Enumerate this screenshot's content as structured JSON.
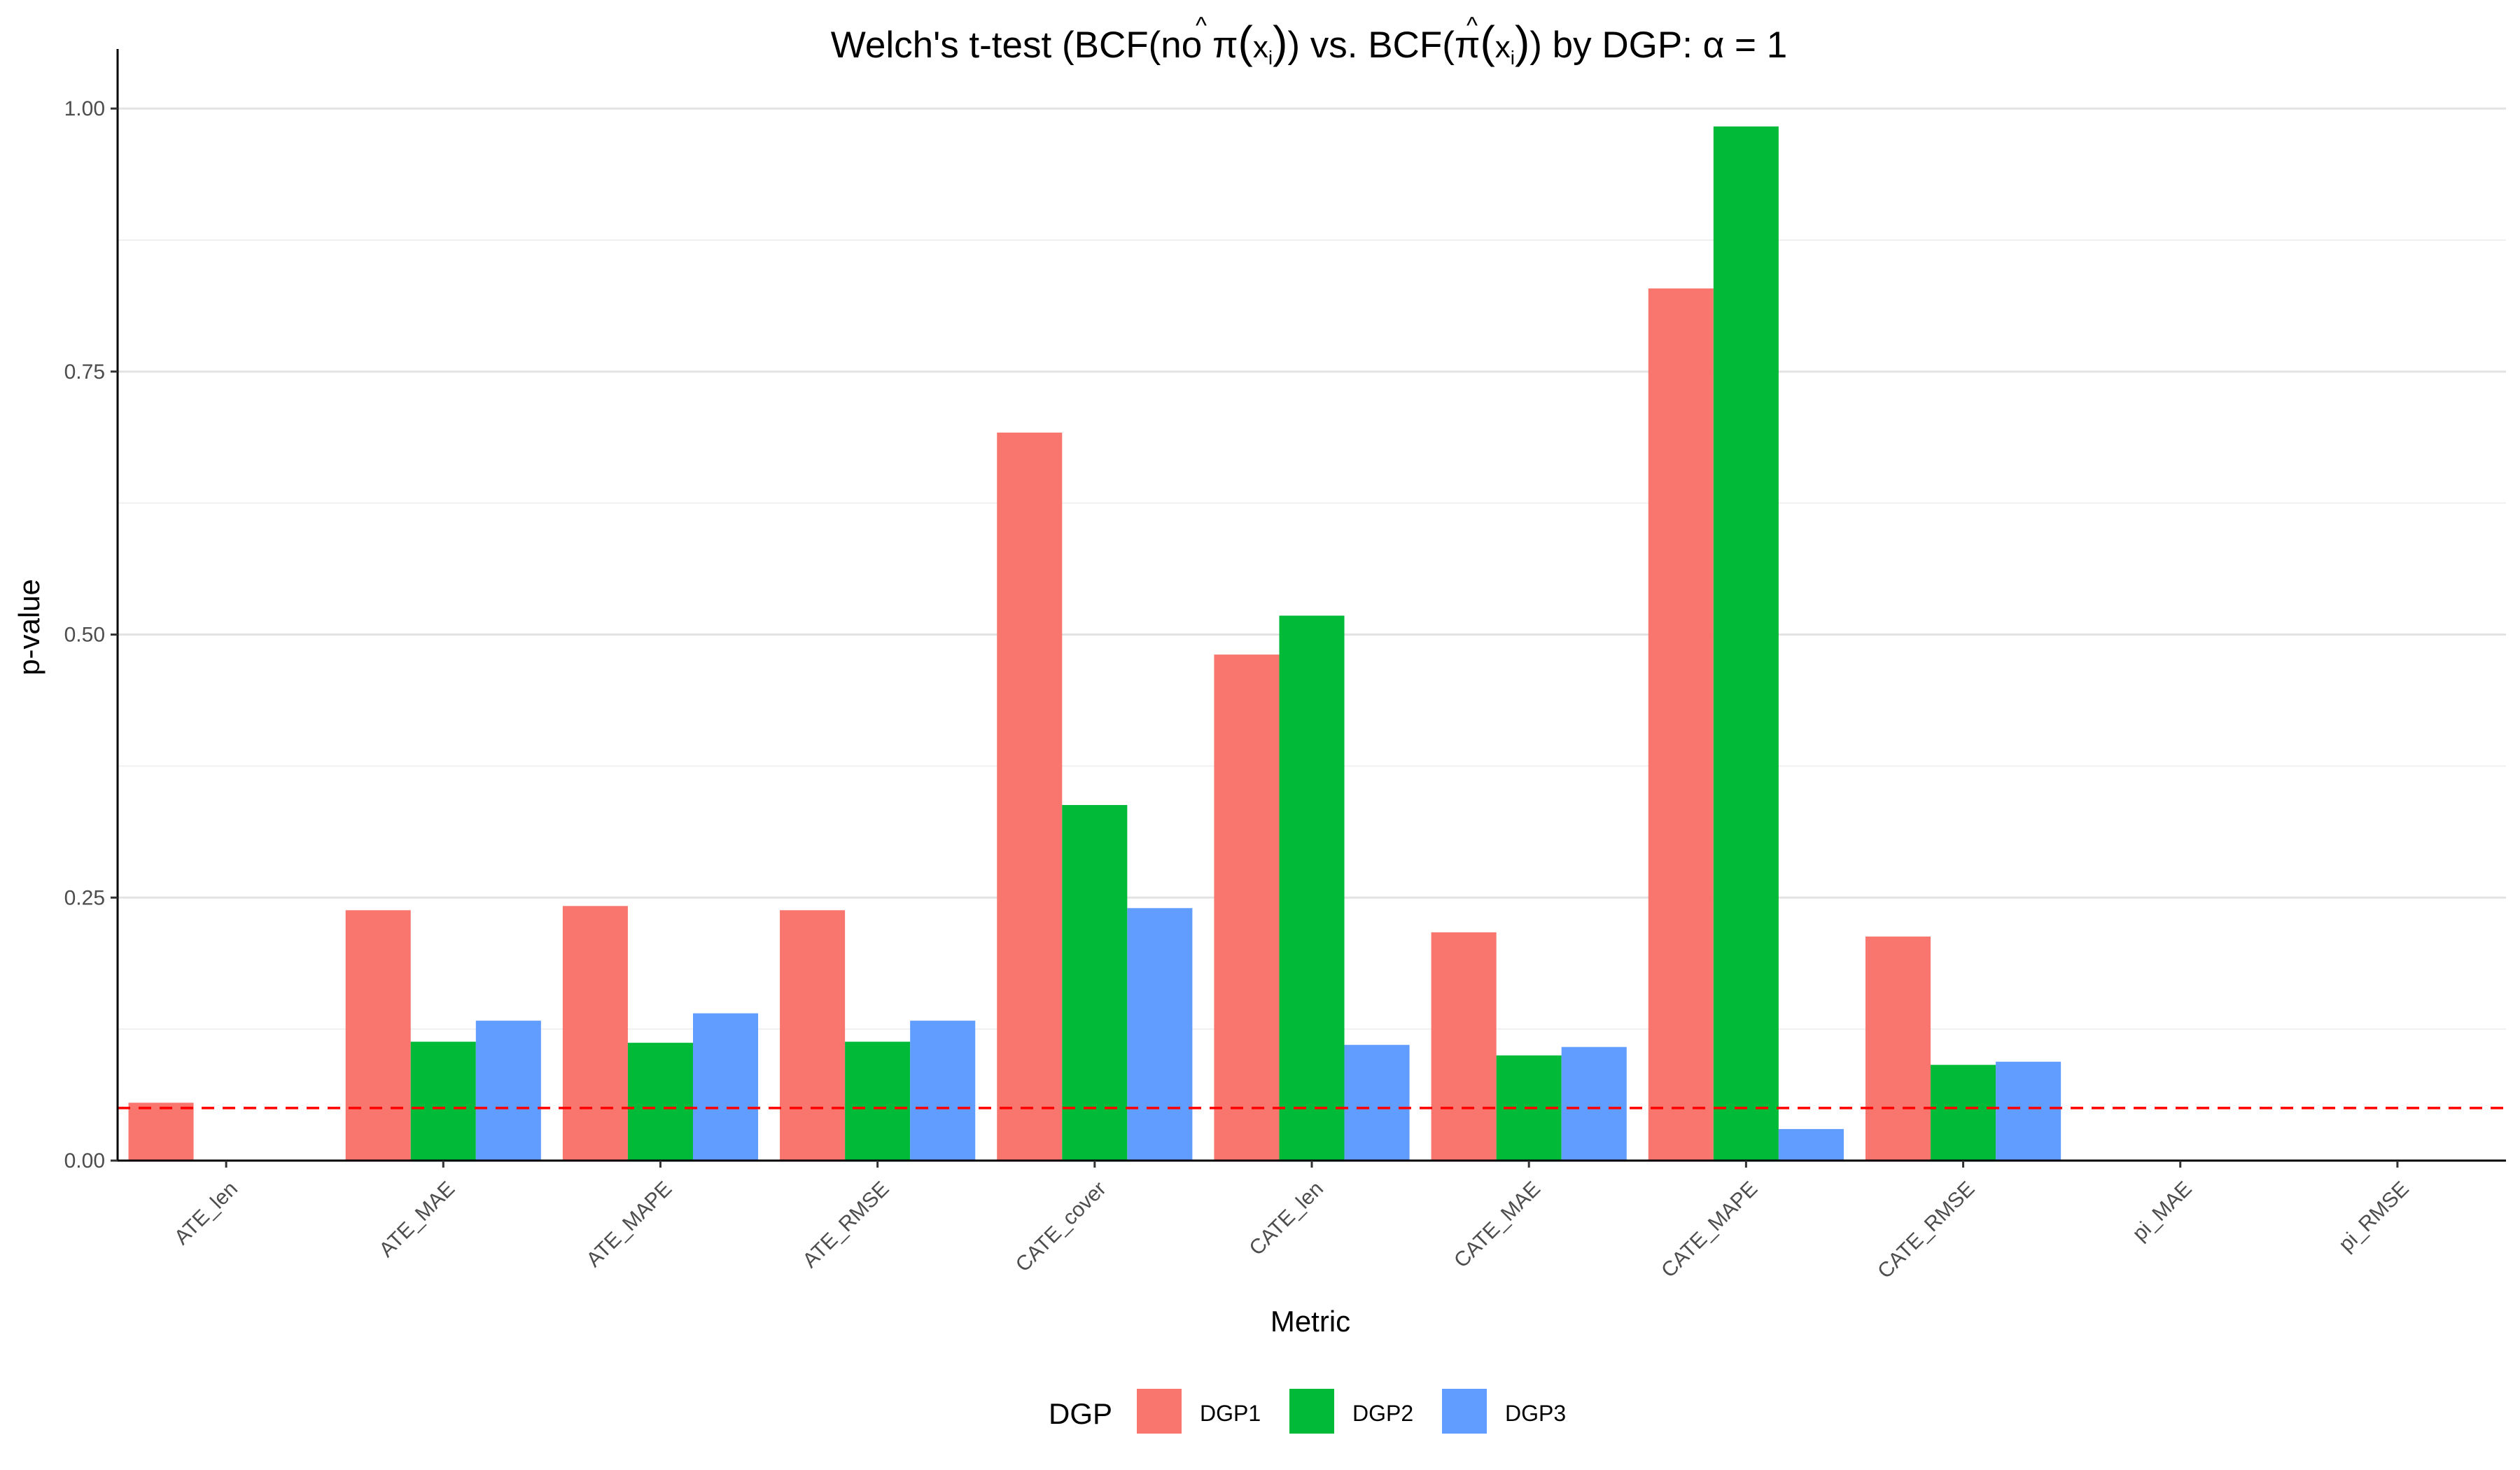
{
  "chart_data": {
    "type": "bar",
    "title": {
      "prefix": "Welch's t-test (BCF(no ",
      "pi": "π",
      "hat": "^",
      "paren_open": "(",
      "x": "x",
      "sub": "i",
      "paren_close": ")",
      "middle": ") vs. BCF(",
      "suffix": ") by DGP: α = 1"
    },
    "xlabel": "Metric",
    "ylabel": "p-value",
    "ylim": [
      0,
      1.03
    ],
    "yticks": [
      0.0,
      0.25,
      0.5,
      0.75,
      1.0
    ],
    "ytick_labels": [
      "0.00",
      "0.25",
      "0.50",
      "0.75",
      "1.00"
    ],
    "categories": [
      "ATE_len",
      "ATE_MAE",
      "ATE_MAPE",
      "ATE_RMSE",
      "CATE_cover",
      "CATE_len",
      "CATE_MAE",
      "CATE_MAPE",
      "CATE_RMSE",
      "pi_MAE",
      "pi_RMSE"
    ],
    "series": [
      {
        "name": "DGP1",
        "color": "#F8766D",
        "values": [
          0.055,
          0.238,
          0.242,
          0.238,
          0.692,
          0.481,
          0.217,
          0.829,
          0.213,
          null,
          null
        ]
      },
      {
        "name": "DGP2",
        "color": "#00BA38",
        "values": [
          null,
          0.113,
          0.112,
          0.113,
          0.338,
          0.518,
          0.1,
          0.983,
          0.091,
          null,
          null
        ]
      },
      {
        "name": "DGP3",
        "color": "#619CFF",
        "values": [
          null,
          0.133,
          0.14,
          0.133,
          0.24,
          0.11,
          0.108,
          0.03,
          0.094,
          null,
          null
        ]
      }
    ],
    "reference_line": {
      "y": 0.05,
      "color": "#FF0000",
      "style": "dashed"
    },
    "legend": {
      "title": "DGP",
      "position": "bottom"
    },
    "grid": true
  }
}
